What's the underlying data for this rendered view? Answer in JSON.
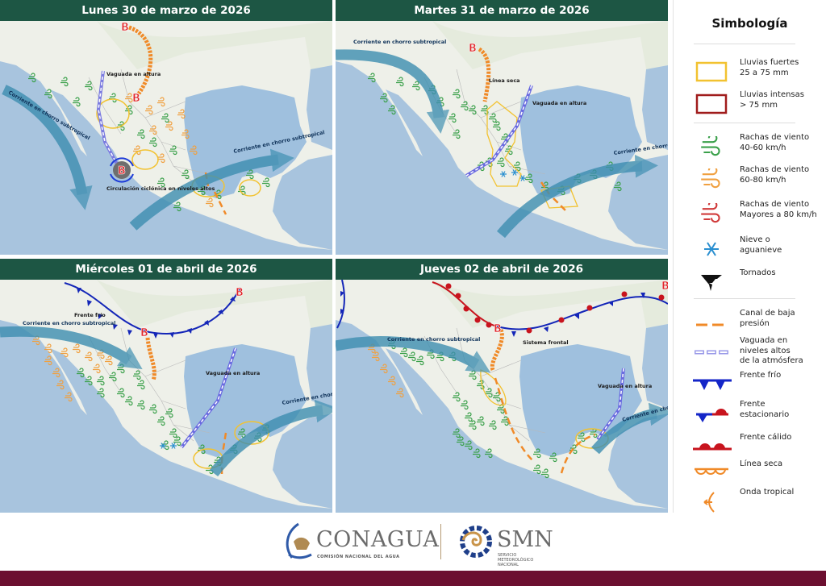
{
  "panels": [
    {
      "title": "Lunes 30 de marzo de 2026",
      "labels": {
        "low": "B",
        "vaguada": "Vaguada en altura",
        "jet_left": "Corriente en chorro subtropical",
        "jet_right": "Corriente en chorro subtropical",
        "cyclonic": "Circulación ciclónica en niveles altos"
      }
    },
    {
      "title": "Martes 31 de marzo de 2026",
      "labels": {
        "low": "B",
        "dry_line": "Línea seca",
        "vaguada": "Vaguada en altura",
        "jet_left": "Corriente en chorro subtropical",
        "jet_right": "Corriente en chorro subtropical"
      }
    },
    {
      "title": "Miércoles 01 de abril de 2026",
      "labels": {
        "low": "B",
        "cold_front": "Frente frío",
        "vaguada": "Vaguada en altura",
        "jet_left": "Corriente en chorro subtropical",
        "jet_right": "Corriente en chorro subtropical"
      }
    },
    {
      "title": "Jueves 02 de abril de 2026",
      "labels": {
        "low": "B",
        "frontal_system": "Sistema frontal",
        "vaguada": "Vaguada en altura",
        "jet_left": "Corriente en chorro subtropical",
        "jet_right": "Corriente en chorro subtropical"
      }
    }
  ],
  "legend": {
    "title": "Simbología",
    "items": [
      {
        "icon": "heavy-rain-box",
        "label": "Lluvias fuertes\n25 a 75 mm",
        "color": "#f2c230"
      },
      {
        "icon": "intense-rain-box",
        "label": "Lluvias intensas\n> 75 mm",
        "color": "#a01c1c"
      },
      {
        "icon": "wind-gust",
        "label": "Rachas de viento\n40-60 km/h",
        "color": "#3aa04a"
      },
      {
        "icon": "wind-gust",
        "label": "Rachas de viento\n60-80 km/h",
        "color": "#f0a040"
      },
      {
        "icon": "wind-gust",
        "label": "Rachas de viento\nMayores a 80 km/h",
        "color": "#d03a3a"
      },
      {
        "icon": "snowflake",
        "label": "Nieve o\naguanieve",
        "color": "#2a8fd0"
      },
      {
        "icon": "tornado",
        "label": "Tornados",
        "color": "#111111"
      },
      {
        "icon": "low-pressure-trough",
        "label": "Canal de baja\npresión",
        "color": "#f08a28"
      },
      {
        "icon": "upper-trough",
        "label": "Vaguada en\nniveles altos\nde la atmósfera",
        "color": "#9a9ae8"
      },
      {
        "icon": "cold-front",
        "label": "Frente frío",
        "color": "#1426c8"
      },
      {
        "icon": "stationary-front",
        "label": "Frente\nestacionario",
        "color": "#c8141e"
      },
      {
        "icon": "warm-front",
        "label": "Frente cálido",
        "color": "#c8141e"
      },
      {
        "icon": "dry-line",
        "label": "Línea seca",
        "color": "#f08a28"
      },
      {
        "icon": "tropical-wave",
        "label": "Onda tropical",
        "color": "#f08a28"
      }
    ]
  },
  "footer": {
    "conagua": "CONAGUA",
    "conagua_sub": "COMISIÓN NACIONAL DEL AGUA",
    "smn": "SMN",
    "smn_sub": "SERVICIO METEOROLÓGICO NACIONAL",
    "colors": {
      "bar": "#6c0f30",
      "header": "#1d5644"
    }
  }
}
